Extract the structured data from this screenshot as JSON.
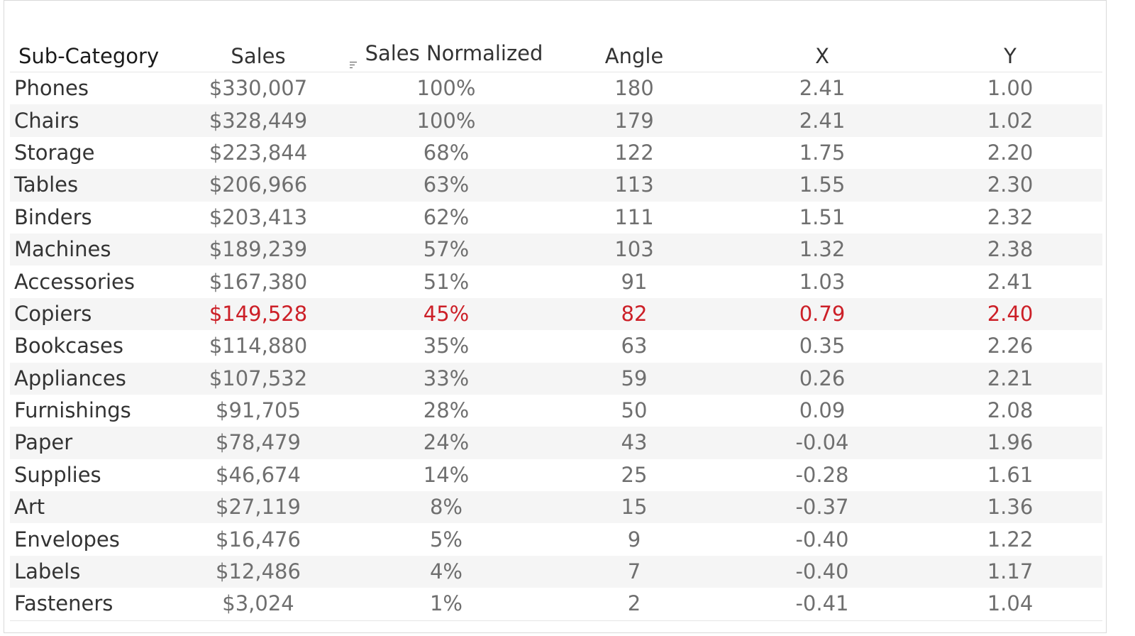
{
  "table": {
    "headers": [
      "Sub-Category",
      "Sales",
      "Sales Normalized",
      "Angle",
      "X",
      "Y"
    ],
    "sorted_column_icon": "sort-descending-icon",
    "highlight_color": "#cc1f27",
    "rows": [
      {
        "sub_category": "Phones",
        "sales": "$330,007",
        "normalized": "100%",
        "angle": "180",
        "x": "2.41",
        "y": "1.00"
      },
      {
        "sub_category": "Chairs",
        "sales": "$328,449",
        "normalized": "100%",
        "angle": "179",
        "x": "2.41",
        "y": "1.02"
      },
      {
        "sub_category": "Storage",
        "sales": "$223,844",
        "normalized": "68%",
        "angle": "122",
        "x": "1.75",
        "y": "2.20"
      },
      {
        "sub_category": "Tables",
        "sales": "$206,966",
        "normalized": "63%",
        "angle": "113",
        "x": "1.55",
        "y": "2.30"
      },
      {
        "sub_category": "Binders",
        "sales": "$203,413",
        "normalized": "62%",
        "angle": "111",
        "x": "1.51",
        "y": "2.32"
      },
      {
        "sub_category": "Machines",
        "sales": "$189,239",
        "normalized": "57%",
        "angle": "103",
        "x": "1.32",
        "y": "2.38"
      },
      {
        "sub_category": "Accessories",
        "sales": "$167,380",
        "normalized": "51%",
        "angle": "91",
        "x": "1.03",
        "y": "2.41"
      },
      {
        "sub_category": "Copiers",
        "sales": "$149,528",
        "normalized": "45%",
        "angle": "82",
        "x": "0.79",
        "y": "2.40"
      },
      {
        "sub_category": "Bookcases",
        "sales": "$114,880",
        "normalized": "35%",
        "angle": "63",
        "x": "0.35",
        "y": "2.26"
      },
      {
        "sub_category": "Appliances",
        "sales": "$107,532",
        "normalized": "33%",
        "angle": "59",
        "x": "0.26",
        "y": "2.21"
      },
      {
        "sub_category": "Furnishings",
        "sales": "$91,705",
        "normalized": "28%",
        "angle": "50",
        "x": "0.09",
        "y": "2.08"
      },
      {
        "sub_category": "Paper",
        "sales": "$78,479",
        "normalized": "24%",
        "angle": "43",
        "x": "-0.04",
        "y": "1.96"
      },
      {
        "sub_category": "Supplies",
        "sales": "$46,674",
        "normalized": "14%",
        "angle": "25",
        "x": "-0.28",
        "y": "1.61"
      },
      {
        "sub_category": "Art",
        "sales": "$27,119",
        "normalized": "8%",
        "angle": "15",
        "x": "-0.37",
        "y": "1.36"
      },
      {
        "sub_category": "Envelopes",
        "sales": "$16,476",
        "normalized": "5%",
        "angle": "9",
        "x": "-0.40",
        "y": "1.22"
      },
      {
        "sub_category": "Labels",
        "sales": "$12,486",
        "normalized": "4%",
        "angle": "7",
        "x": "-0.40",
        "y": "1.17"
      },
      {
        "sub_category": "Fasteners",
        "sales": "$3,024",
        "normalized": "1%",
        "angle": "2",
        "x": "-0.41",
        "y": "1.04"
      }
    ]
  }
}
